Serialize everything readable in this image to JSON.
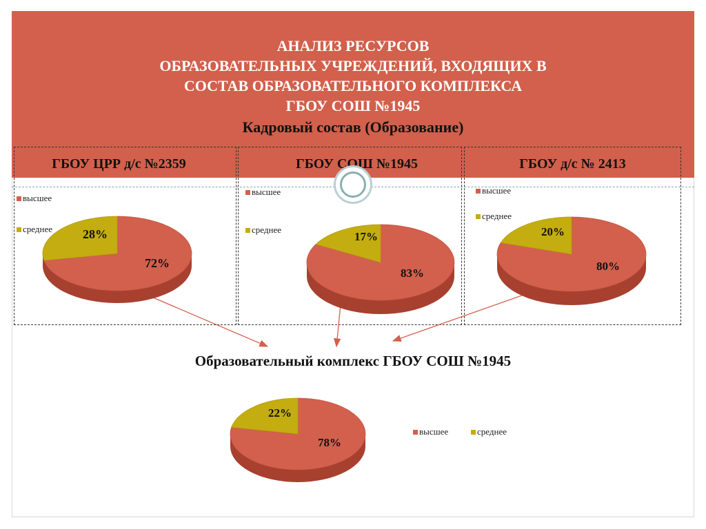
{
  "header": {
    "title_lines": [
      "АНАЛИЗ РЕСУРСОВ",
      "ОБРАЗОВАТЕЛЬНЫХ УЧРЕЖДЕНИЙ, ВХОДЯЩИХ В",
      "СОСТАВ ОБРАЗОВАТЕЛЬНОГО КОМПЛЕКСА",
      "ГБОУ СОШ №1945"
    ],
    "subtitle": "Кадровый состав (Образование)"
  },
  "complex_title": "Образовательный комплекс ГБОУ СОШ №1945",
  "colors": {
    "header_band": "#d2604c",
    "footer_band": "#8aaeb0",
    "higher": "#d2604c",
    "secondary": "#c4ad10"
  },
  "chart_data": [
    {
      "type": "pie",
      "title": "ГБОУ ЦРР д/с №2359",
      "legend": [
        "высшее",
        "среднее"
      ],
      "values": [
        72,
        28
      ],
      "data_labels": [
        "72%",
        "28%"
      ]
    },
    {
      "type": "pie",
      "title": "ГБОУ СОШ №1945",
      "legend": [
        "высшее",
        "среднее"
      ],
      "values": [
        83,
        17
      ],
      "data_labels": [
        "83%",
        "17%"
      ]
    },
    {
      "type": "pie",
      "title": "ГБОУ д/с № 2413",
      "legend": [
        "высшее",
        "среднее"
      ],
      "values": [
        80,
        20
      ],
      "data_labels": [
        "80%",
        "20%"
      ]
    },
    {
      "type": "pie",
      "title": "",
      "legend": [
        "высшее",
        "среднее"
      ],
      "values": [
        78,
        22
      ],
      "data_labels": [
        "78%",
        "22%"
      ]
    }
  ]
}
